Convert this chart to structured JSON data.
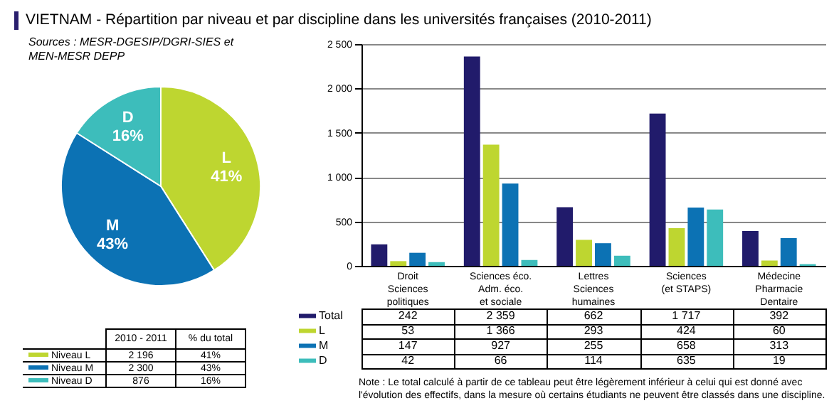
{
  "chart_data": [
    {
      "type": "pie",
      "title": "VIETNAM - Répartition par niveau et par discipline dans les universités françaises (2010-2011)",
      "annotations": [
        "Sources : MESR-DGESIP/DGRI-SIES et MEN-MESR DEPP"
      ],
      "categories": [
        "L",
        "M",
        "D"
      ],
      "values": [
        41,
        43,
        16
      ],
      "value_labels": [
        "41%",
        "43%",
        "16%"
      ],
      "colors": [
        "#bed630",
        "#0c72b4",
        "#3dbdbb"
      ]
    },
    {
      "type": "other",
      "annotations": [
        "2010 - 2011",
        "% du total",
        "Niveau L",
        "2 196",
        "41%",
        "Niveau M",
        "2 300",
        "43%",
        "Niveau D",
        "876",
        "16%"
      ]
    },
    {
      "type": "bar",
      "categories": [
        "Droit\nSciences\npolitiques",
        "Sciences éco.\nAdm. éco.\net sociale",
        "Lettres\nSciences\nhumaines",
        "Sciences\n(et STAPS)",
        "Médecine\nPharmacie\nDentaire"
      ],
      "series": [
        {
          "name": "Total",
          "color": "#211b6b",
          "values": [
            242,
            2359,
            662,
            1717,
            392
          ],
          "value_labels": [
            "242",
            "2 359",
            "662",
            "1 717",
            "392"
          ]
        },
        {
          "name": "L",
          "color": "#bed630",
          "values": [
            53,
            1366,
            293,
            424,
            60
          ],
          "value_labels": [
            "53",
            "1 366",
            "293",
            "424",
            "60"
          ]
        },
        {
          "name": "M",
          "color": "#0c72b4",
          "values": [
            147,
            927,
            255,
            658,
            313
          ],
          "value_labels": [
            "147",
            "927",
            "255",
            "658",
            "313"
          ]
        },
        {
          "name": "D",
          "color": "#3dbdbb",
          "values": [
            42,
            66,
            114,
            635,
            19
          ],
          "value_labels": [
            "42",
            "66",
            "114",
            "635",
            "19"
          ]
        }
      ],
      "ylim": [
        0,
        2500
      ],
      "yticks": [
        0,
        {
          "value": 500,
          "label": "500"
        },
        {
          "value": 1000,
          "label": "1 000"
        },
        {
          "value": 1500,
          "label": "1 500"
        },
        {
          "value": 2000,
          "label": "2 000"
        },
        {
          "value": 2500,
          "label": "2 500"
        }
      ],
      "grid": "y",
      "legend": "bottom",
      "annotations": [
        "Note : Le total calculé à partir de ce tableau peut être légèrement inférieur à celui qui est donné avec l'évolution des effectifs, dans la mesure où certains étudiants ne peuvent être classés dans une discipline."
      ]
    }
  ]
}
